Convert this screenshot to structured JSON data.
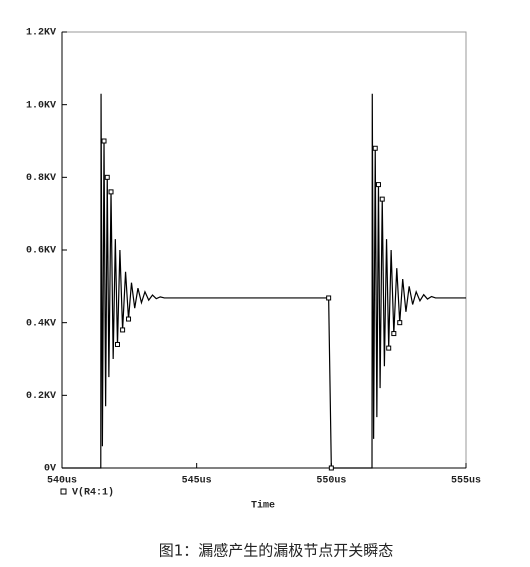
{
  "chart_data": {
    "type": "line",
    "xlabel": "Time",
    "caption": "图1：漏感产生的漏极节点开关瞬态",
    "xlim": [
      540,
      555
    ],
    "ylim": [
      0,
      1.2
    ],
    "xticks": [
      {
        "value": 540,
        "label": "540us"
      },
      {
        "value": 545,
        "label": "545us"
      },
      {
        "value": 550,
        "label": "550us"
      },
      {
        "value": 555,
        "label": "555us"
      }
    ],
    "yticks": [
      {
        "value": 0,
        "label": "0V"
      },
      {
        "value": 0.2,
        "label": "0.2KV"
      },
      {
        "value": 0.4,
        "label": "0.4KV"
      },
      {
        "value": 0.6,
        "label": "0.6KV"
      },
      {
        "value": 0.8,
        "label": "0.8KV"
      },
      {
        "value": 1.0,
        "label": "1.0KV"
      },
      {
        "value": 1.2,
        "label": "1.2KV"
      }
    ],
    "x": [
      540,
      541.44,
      541.45,
      541.5,
      541.56,
      541.62,
      541.68,
      541.74,
      541.82,
      541.9,
      541.98,
      542.06,
      542.15,
      542.25,
      542.36,
      542.47,
      542.58,
      542.7,
      542.82,
      542.95,
      543.08,
      543.22,
      543.36,
      543.5,
      543.65,
      543.8,
      549.9,
      550,
      551.5,
      551.51,
      551.52,
      551.57,
      551.63,
      551.69,
      551.75,
      551.81,
      551.89,
      551.97,
      552.05,
      552.13,
      552.22,
      552.32,
      552.43,
      552.54,
      552.65,
      552.77,
      552.89,
      553.02,
      553.15,
      553.29,
      553.43,
      553.57,
      553.72,
      553.87,
      555
    ],
    "series": [
      {
        "name": "V(R4:1)",
        "color": "#000000",
        "values": [
          0,
          0,
          1.03,
          0.06,
          0.9,
          0.17,
          0.8,
          0.25,
          0.76,
          0.3,
          0.63,
          0.34,
          0.6,
          0.38,
          0.54,
          0.41,
          0.51,
          0.44,
          0.495,
          0.455,
          0.485,
          0.462,
          0.476,
          0.466,
          0.471,
          0.468,
          0.468,
          0,
          0,
          0,
          1.03,
          0.08,
          0.88,
          0.14,
          0.78,
          0.22,
          0.74,
          0.28,
          0.63,
          0.33,
          0.6,
          0.37,
          0.55,
          0.4,
          0.52,
          0.43,
          0.5,
          0.45,
          0.485,
          0.46,
          0.477,
          0.465,
          0.472,
          0.468,
          0.468
        ]
      }
    ]
  }
}
